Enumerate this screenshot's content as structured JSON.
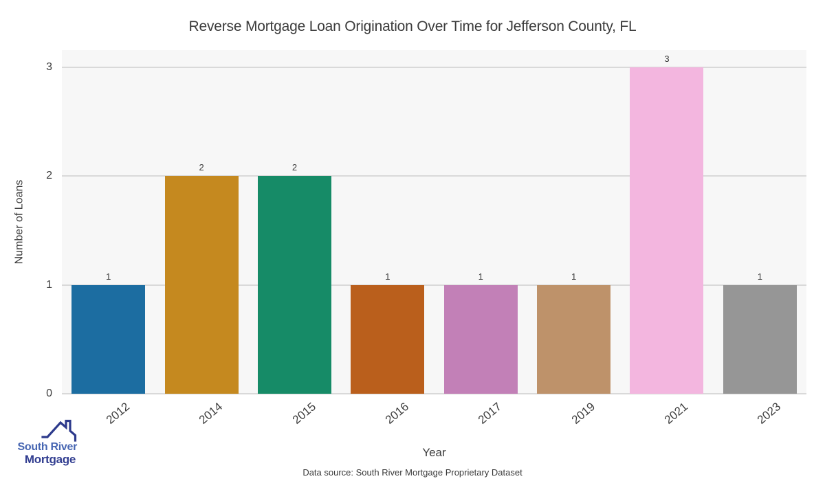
{
  "chart_data": {
    "type": "bar",
    "title": "Reverse Mortgage Loan Origination Over Time for Jefferson County, FL",
    "categories": [
      "2012",
      "2014",
      "2015",
      "2016",
      "2017",
      "2019",
      "2021",
      "2023"
    ],
    "values": [
      1,
      2,
      2,
      1,
      1,
      1,
      3,
      1
    ],
    "bar_value_labels": [
      "1",
      "2",
      "2",
      "1",
      "1",
      "1",
      "3",
      "1"
    ],
    "bar_colors": [
      "#1c6da1",
      "#c5891f",
      "#168b67",
      "#ba5f1c",
      "#c280b7",
      "#be926a",
      "#f3b6df",
      "#969696"
    ],
    "xlabel": "Year",
    "ylabel": "Number of Loans",
    "yticks": [
      0,
      1,
      2,
      3
    ],
    "ylim": [
      0,
      3.16
    ],
    "grid": true,
    "legend": "none",
    "plot_background": "#f7f7f7",
    "gridline_color": "#d9d9d9",
    "text_color": "#3d3d3d"
  },
  "footer": {
    "data_source": "Data source: South River Mortgage Proprietary Dataset"
  },
  "logo": {
    "line1": "South River",
    "line2": "Mortgage",
    "line1_color": "#4766b2",
    "line2_color": "#313d90",
    "roof_color": "#2d3a8c"
  }
}
